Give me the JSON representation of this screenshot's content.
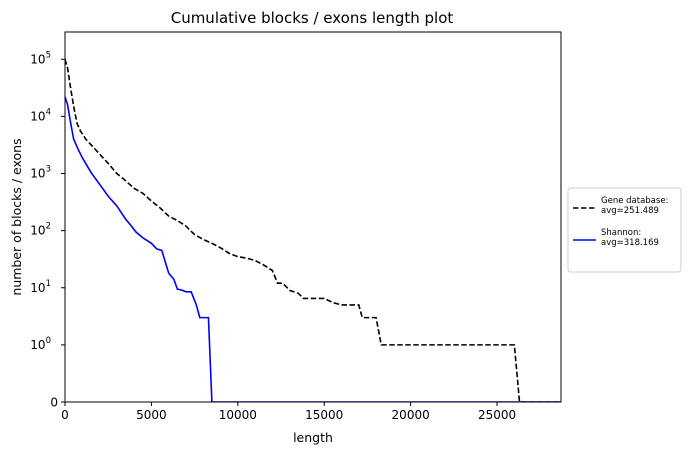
{
  "chart_data": {
    "type": "line",
    "title": "Cumulative blocks / exons length plot",
    "xlabel": "length",
    "ylabel": "number of blocks / exons",
    "xlim": [
      0,
      28700
    ],
    "ylim": [
      0,
      300000
    ],
    "yscale": "symlog",
    "grid": false,
    "legend_position": "outside-right",
    "x_ticks": [
      0,
      5000,
      10000,
      15000,
      20000,
      25000
    ],
    "y_ticks": [
      {
        "value": 0,
        "label": "0"
      },
      {
        "value": 1,
        "base": "10",
        "exp": "0"
      },
      {
        "value": 10,
        "base": "10",
        "exp": "1"
      },
      {
        "value": 100,
        "base": "10",
        "exp": "2"
      },
      {
        "value": 1000,
        "base": "10",
        "exp": "3"
      },
      {
        "value": 10000,
        "base": "10",
        "exp": "4"
      },
      {
        "value": 100000,
        "base": "10",
        "exp": "5"
      }
    ],
    "series": [
      {
        "name": "Gene database:",
        "sublabel": "avg=251.489",
        "color": "#000000",
        "dash": "dashed",
        "points": [
          [
            0,
            100000
          ],
          [
            150,
            70000
          ],
          [
            300,
            35000
          ],
          [
            500,
            15000
          ],
          [
            700,
            7500
          ],
          [
            900,
            5500
          ],
          [
            1200,
            4000
          ],
          [
            1500,
            3200
          ],
          [
            2000,
            2200
          ],
          [
            2500,
            1500
          ],
          [
            3000,
            1000
          ],
          [
            3500,
            750
          ],
          [
            4000,
            550
          ],
          [
            4500,
            450
          ],
          [
            5000,
            330
          ],
          [
            5500,
            250
          ],
          [
            6000,
            180
          ],
          [
            6500,
            150
          ],
          [
            7000,
            120
          ],
          [
            7500,
            85
          ],
          [
            8000,
            70
          ],
          [
            8500,
            60
          ],
          [
            9000,
            50
          ],
          [
            9500,
            40
          ],
          [
            10000,
            35
          ],
          [
            10500,
            33
          ],
          [
            11000,
            30
          ],
          [
            11500,
            25
          ],
          [
            12000,
            20
          ],
          [
            12300,
            12
          ],
          [
            12600,
            12
          ],
          [
            13000,
            9
          ],
          [
            13500,
            8
          ],
          [
            13800,
            6.5
          ],
          [
            15000,
            6.5
          ],
          [
            15500,
            5.5
          ],
          [
            16000,
            5
          ],
          [
            17000,
            5
          ],
          [
            17200,
            3
          ],
          [
            18000,
            3
          ],
          [
            18300,
            1
          ],
          [
            26000,
            1
          ],
          [
            26300,
            0
          ],
          [
            28700,
            0
          ]
        ]
      },
      {
        "name": "Shannon:",
        "sublabel": "avg=318.169",
        "color": "#0000ff",
        "dash": "solid",
        "points": [
          [
            0,
            22000
          ],
          [
            150,
            16000
          ],
          [
            300,
            8500
          ],
          [
            500,
            4000
          ],
          [
            800,
            2500
          ],
          [
            1000,
            1900
          ],
          [
            1500,
            1050
          ],
          [
            2000,
            650
          ],
          [
            2500,
            400
          ],
          [
            3000,
            270
          ],
          [
            3500,
            160
          ],
          [
            3800,
            125
          ],
          [
            4100,
            95
          ],
          [
            4500,
            75
          ],
          [
            5000,
            60
          ],
          [
            5300,
            48
          ],
          [
            5600,
            45
          ],
          [
            6000,
            18
          ],
          [
            6300,
            14
          ],
          [
            6500,
            9.5
          ],
          [
            6800,
            9
          ],
          [
            7000,
            8.5
          ],
          [
            7300,
            8.5
          ],
          [
            7600,
            5
          ],
          [
            7800,
            3
          ],
          [
            8300,
            3
          ],
          [
            8500,
            0
          ],
          [
            28700,
            0
          ]
        ]
      }
    ]
  }
}
